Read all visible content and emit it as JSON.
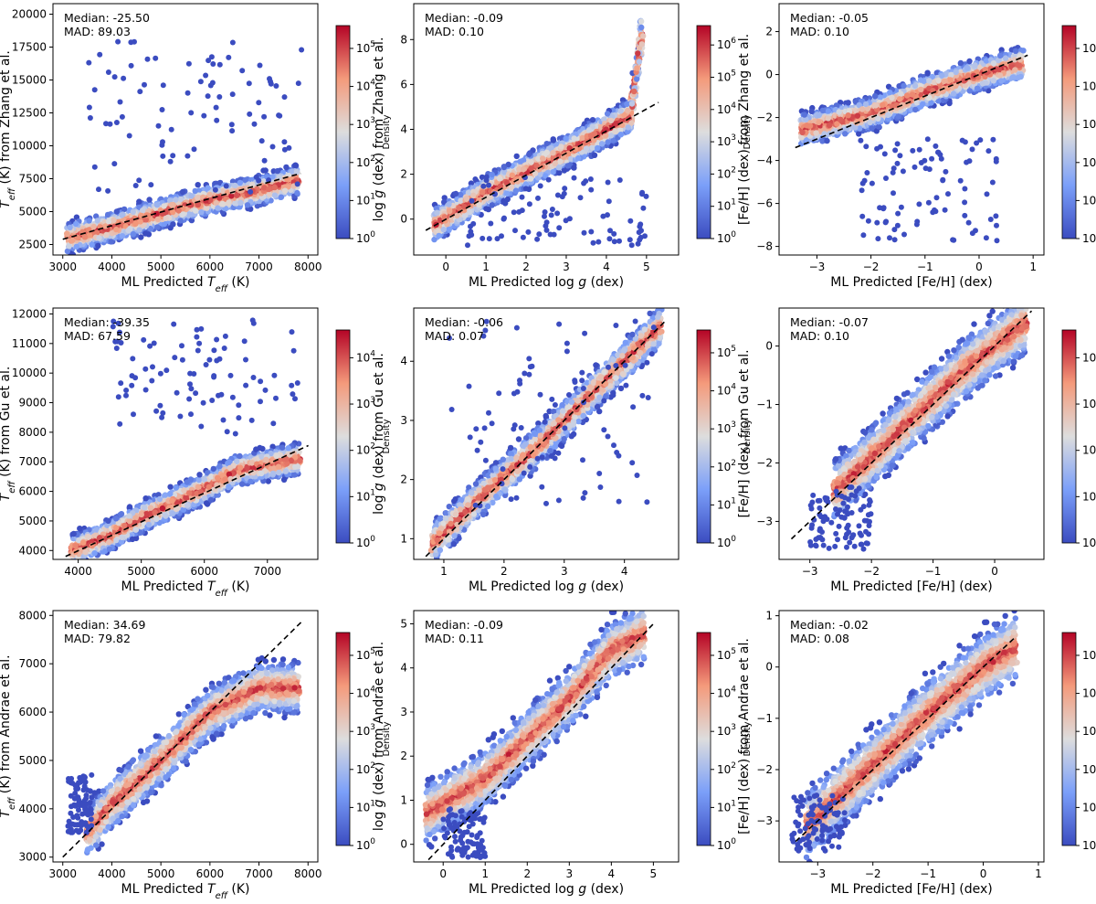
{
  "colors": {
    "low": "#3b4cc0",
    "mid": "#dddddd",
    "high": "#b40426",
    "identity_line": "#000000"
  },
  "chart_data": [
    {
      "type": "hexbin-scatter",
      "row": 0,
      "col": 0,
      "param": "teff",
      "xlabel": "ML Predicted T_eff (K)",
      "ylabel": "T_eff (K) from Zhang et al.",
      "xlim": [
        2800,
        8200
      ],
      "ylim": [
        1700,
        20800
      ],
      "xticks": [
        3000,
        4000,
        5000,
        6000,
        7000,
        8000
      ],
      "yticks": [
        2500,
        5000,
        7500,
        10000,
        12500,
        15000,
        17500,
        20000
      ],
      "median_text": "Median: -25.50",
      "mad_text": "MAD: 89.03",
      "colorbar_max_exp": 5,
      "colorbar_label": "Density",
      "identity_line": [
        [
          3000,
          2900
        ],
        [
          7850,
          7900
        ]
      ],
      "ridge": [
        [
          3100,
          3000
        ],
        [
          4000,
          3800
        ],
        [
          5000,
          4900
        ],
        [
          6000,
          5900
        ],
        [
          7000,
          6600
        ],
        [
          7800,
          7400
        ]
      ],
      "ridge_spread": 1500,
      "outliers": {
        "x": [
          3500,
          7900
        ],
        "y": [
          6500,
          18000
        ]
      }
    },
    {
      "type": "hexbin-scatter",
      "row": 0,
      "col": 1,
      "param": "logg",
      "xlabel": "ML Predicted log g (dex)",
      "ylabel": "log g (dex) from Zhang et al.",
      "xlim": [
        -0.8,
        5.8
      ],
      "ylim": [
        -1.6,
        9.6
      ],
      "xticks": [
        0,
        1,
        2,
        3,
        4,
        5
      ],
      "yticks": [
        0,
        2,
        4,
        6,
        8
      ],
      "median_text": "Median: -0.09",
      "mad_text": "MAD: 0.10",
      "colorbar_max_exp": 6,
      "colorbar_label": "Density",
      "identity_line": [
        [
          -0.5,
          -0.5
        ],
        [
          5.3,
          5.2
        ]
      ],
      "ridge": [
        [
          -0.3,
          -0.3
        ],
        [
          1,
          1.2
        ],
        [
          2,
          2.1
        ],
        [
          3,
          3.0
        ],
        [
          4,
          4.0
        ],
        [
          4.6,
          4.6
        ],
        [
          4.9,
          8.5
        ]
      ],
      "ridge_spread": 1.0,
      "outliers": {
        "x": [
          0.5,
          5.0
        ],
        "y": [
          -1.2,
          2.0
        ]
      }
    },
    {
      "type": "hexbin-scatter",
      "row": 0,
      "col": 2,
      "param": "feh",
      "xlabel": "ML Predicted [Fe/H] (dex)",
      "ylabel": "[Fe/H] (dex) from Zhang et al.",
      "xlim": [
        -3.7,
        1.2
      ],
      "ylim": [
        -8.4,
        3.3
      ],
      "xticks": [
        -3,
        -2,
        -1,
        0,
        1
      ],
      "yticks": [
        -8,
        -6,
        -4,
        -2,
        0,
        2
      ],
      "median_text": "Median: -0.05",
      "mad_text": "MAD: 0.10",
      "colorbar_max_exp": 5,
      "colorbar_label": "Density",
      "identity_line": [
        [
          -3.4,
          -3.4
        ],
        [
          0.9,
          0.9
        ]
      ],
      "ridge": [
        [
          -3.3,
          -2.6
        ],
        [
          -2,
          -1.8
        ],
        [
          -1,
          -0.8
        ],
        [
          0,
          0
        ],
        [
          0.8,
          0.5
        ]
      ],
      "ridge_spread": 1.0,
      "outliers": {
        "x": [
          -2.2,
          0.4
        ],
        "y": [
          -7.8,
          -3.0
        ]
      }
    },
    {
      "type": "hexbin-scatter",
      "row": 1,
      "col": 0,
      "param": "teff",
      "xlabel": "ML Predicted T_eff (K)",
      "ylabel": "T_eff (K) from Gu et al.",
      "xlim": [
        3600,
        7800
      ],
      "ylim": [
        3700,
        12200
      ],
      "xticks": [
        4000,
        5000,
        6000,
        7000
      ],
      "yticks": [
        4000,
        5000,
        6000,
        7000,
        8000,
        9000,
        10000,
        11000,
        12000
      ],
      "median_text": "Median: -39.35",
      "mad_text": "MAD: 67.59",
      "colorbar_max_exp": 4,
      "colorbar_label": "Density",
      "identity_line": [
        [
          3800,
          3800
        ],
        [
          7650,
          7550
        ]
      ],
      "ridge": [
        [
          3900,
          4000
        ],
        [
          4500,
          4500
        ],
        [
          5000,
          5100
        ],
        [
          6000,
          6100
        ],
        [
          6500,
          6700
        ],
        [
          7500,
          7100
        ]
      ],
      "ridge_spread": 700,
      "outliers": {
        "x": [
          4500,
          7600
        ],
        "y": [
          7800,
          11800
        ]
      }
    },
    {
      "type": "hexbin-scatter",
      "row": 1,
      "col": 1,
      "param": "logg",
      "xlabel": "ML Predicted log g (dex)",
      "ylabel": "log g (dex) from Gu et al.",
      "xlim": [
        0.5,
        4.9
      ],
      "ylim": [
        0.65,
        4.9
      ],
      "xticks": [
        1,
        2,
        3,
        4
      ],
      "yticks": [
        1,
        2,
        3,
        4
      ],
      "median_text": "Median: -0.06",
      "mad_text": "MAD: 0.07",
      "colorbar_max_exp": 5,
      "colorbar_label": "Density",
      "identity_line": [
        [
          0.7,
          0.7
        ],
        [
          4.7,
          4.7
        ]
      ],
      "ridge": [
        [
          0.8,
          0.9
        ],
        [
          1.5,
          1.6
        ],
        [
          2.5,
          2.5
        ],
        [
          3.5,
          3.5
        ],
        [
          4.6,
          4.6
        ]
      ],
      "ridge_spread": 0.45,
      "outliers": {
        "x": [
          1.0,
          4.5
        ],
        "y": [
          1.5,
          4.8
        ]
      }
    },
    {
      "type": "hexbin-scatter",
      "row": 1,
      "col": 2,
      "param": "feh",
      "xlabel": "ML Predicted [Fe/H] (dex)",
      "ylabel": "[Fe/H] (dex) from Gu et al.",
      "xlim": [
        -3.5,
        0.8
      ],
      "ylim": [
        -3.65,
        0.65
      ],
      "xticks": [
        -3,
        -2,
        -1,
        0
      ],
      "yticks": [
        -3,
        -2,
        -1,
        0
      ],
      "median_text": "Median: -0.07",
      "mad_text": "MAD: 0.10",
      "colorbar_max_exp": 4,
      "colorbar_label": "Density",
      "identity_line": [
        [
          -3.3,
          -3.3
        ],
        [
          0.6,
          0.6
        ]
      ],
      "ridge": [
        [
          -2.6,
          -2.5
        ],
        [
          -2,
          -1.9
        ],
        [
          -1.2,
          -1.1
        ],
        [
          -0.5,
          -0.4
        ],
        [
          0.5,
          0.4
        ]
      ],
      "ridge_spread": 0.7,
      "outliers": {
        "x": [
          -3.0,
          -2.0
        ],
        "y": [
          -3.5,
          -2.4
        ]
      }
    },
    {
      "type": "hexbin-scatter",
      "row": 2,
      "col": 0,
      "param": "teff",
      "xlabel": "ML Predicted T_eff (K)",
      "ylabel": "T_eff (K) from Andrae et al.",
      "xlim": [
        2800,
        8200
      ],
      "ylim": [
        2900,
        8100
      ],
      "xticks": [
        3000,
        4000,
        5000,
        6000,
        7000,
        8000
      ],
      "yticks": [
        3000,
        4000,
        5000,
        6000,
        7000,
        8000
      ],
      "median_text": "Median: 34.69",
      "mad_text": "MAD: 79.82",
      "colorbar_max_exp": 5,
      "colorbar_label": "Density",
      "identity_line": [
        [
          3000,
          3000
        ],
        [
          7900,
          7900
        ]
      ],
      "ridge": [
        [
          3500,
          3500
        ],
        [
          4000,
          4100
        ],
        [
          5000,
          5000
        ],
        [
          6000,
          6000
        ],
        [
          7000,
          6500
        ],
        [
          7800,
          6500
        ]
      ],
      "ridge_spread": 700,
      "outliers": {
        "x": [
          3100,
          3600
        ],
        "y": [
          3500,
          4700
        ]
      }
    },
    {
      "type": "hexbin-scatter",
      "row": 2,
      "col": 1,
      "param": "logg",
      "xlabel": "ML Predicted log g (dex)",
      "ylabel": "log g (dex) from Andrae et al.",
      "xlim": [
        -0.7,
        5.6
      ],
      "ylim": [
        -0.4,
        5.3
      ],
      "xticks": [
        0,
        1,
        2,
        3,
        4,
        5
      ],
      "yticks": [
        0,
        1,
        2,
        3,
        4,
        5
      ],
      "median_text": "Median: -0.09",
      "mad_text": "MAD: 0.11",
      "colorbar_max_exp": 5,
      "colorbar_label": "Density",
      "identity_line": [
        [
          -0.5,
          -0.5
        ],
        [
          5.0,
          5.0
        ]
      ],
      "ridge": [
        [
          -0.4,
          0.7
        ],
        [
          1,
          1.5
        ],
        [
          2,
          2.4
        ],
        [
          3,
          3.3
        ],
        [
          4,
          4.4
        ],
        [
          4.8,
          4.8
        ]
      ],
      "ridge_spread": 0.9,
      "outliers": {
        "x": [
          0,
          1
        ],
        "y": [
          -0.3,
          0.8
        ]
      }
    },
    {
      "type": "hexbin-scatter",
      "row": 2,
      "col": 2,
      "param": "feh",
      "xlabel": "ML Predicted [Fe/H] (dex)",
      "ylabel": "[Fe/H] (dex) from Andrae et al.",
      "xlim": [
        -3.7,
        1.1
      ],
      "ylim": [
        -3.8,
        1.1
      ],
      "xticks": [
        -3,
        -2,
        -1,
        0,
        1
      ],
      "yticks": [
        -3,
        -2,
        -1,
        0,
        1
      ],
      "median_text": "Median: -0.02",
      "mad_text": "MAD: 0.08",
      "colorbar_max_exp": 5,
      "colorbar_label": "Density",
      "identity_line": [
        [
          -3.4,
          -3.4
        ],
        [
          0.6,
          0.6
        ]
      ],
      "ridge": [
        [
          -3.2,
          -3.1
        ],
        [
          -2,
          -1.9
        ],
        [
          -1,
          -0.9
        ],
        [
          0,
          0
        ],
        [
          0.6,
          0.4
        ]
      ],
      "ridge_spread": 0.9,
      "outliers": {
        "x": [
          -3.5,
          -2.5
        ],
        "y": [
          -3.6,
          -2.5
        ]
      }
    }
  ]
}
